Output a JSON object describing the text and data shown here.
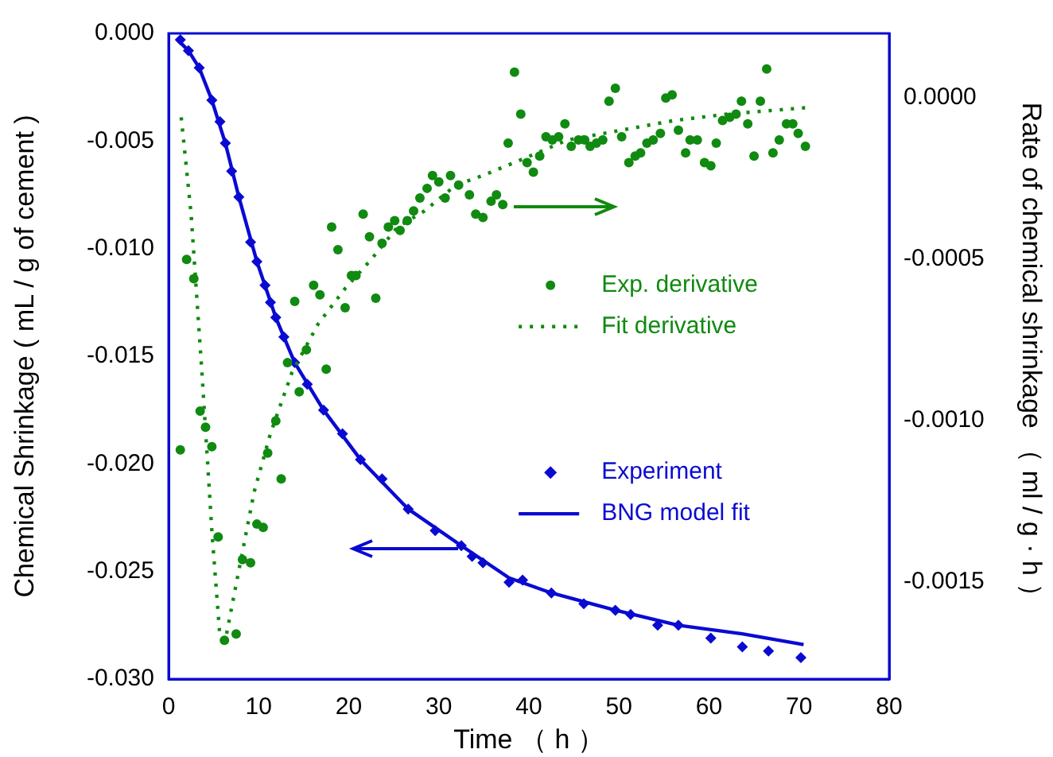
{
  "chart_data": {
    "type": "line",
    "xlabel": "Time （ h ）",
    "ylabel": "Chemical Shrinkage ( mL / g of cement )",
    "y2label": "Rate of chemical shrinkage （ ml / g · h ）",
    "xlim": [
      0,
      80
    ],
    "xticks": [
      0,
      10,
      20,
      30,
      40,
      50,
      60,
      70,
      80
    ],
    "ylim": [
      -0.03,
      0
    ],
    "yticks": [
      {
        "value": -0.03,
        "label": "-0.030"
      },
      {
        "value": -0.025,
        "label": "-0.025"
      },
      {
        "value": -0.02,
        "label": "-0.020"
      },
      {
        "value": -0.015,
        "label": "-0.015"
      },
      {
        "value": -0.01,
        "label": "-0.010"
      },
      {
        "value": -0.005,
        "label": "-0.005"
      },
      {
        "value": 0,
        "label": "0.000"
      }
    ],
    "y2lim": [
      -0.0018,
      0.0002
    ],
    "y2ticks": [
      {
        "value": -0.0015,
        "label": "-0.0015"
      },
      {
        "value": -0.001,
        "label": "-0.0010"
      },
      {
        "value": -0.0005,
        "label": "-0.0005"
      },
      {
        "value": 0,
        "label": "0.0000"
      }
    ],
    "grid": false,
    "legend": "right",
    "series": [
      {
        "name": "Exp. derivative",
        "type": "scatter",
        "axis": "y2",
        "marker": "circle",
        "color": "#108a10",
        "x": [
          1.3,
          2.0,
          2.8,
          3.5,
          4.1,
          4.8,
          5.5,
          6.2,
          7.5,
          8.2,
          9.1,
          9.8,
          10.5,
          11.0,
          11.9,
          12.5,
          13.2,
          14.0,
          14.5,
          15.3,
          16.1,
          16.8,
          17.5,
          18.1,
          18.8,
          19.6,
          20.3,
          20.8,
          21.6,
          22.3,
          23.0,
          23.7,
          24.4,
          25.1,
          25.7,
          26.5,
          27.2,
          27.9,
          28.7,
          29.3,
          30.0,
          30.7,
          31.3,
          32.2,
          33.4,
          34.1,
          34.9,
          35.8,
          36.4,
          37.1,
          37.7,
          38.4,
          39.1,
          39.8,
          40.5,
          41.2,
          41.9,
          42.6,
          43.3,
          44.0,
          44.7,
          45.5,
          46.2,
          46.8,
          47.5,
          48.2,
          48.9,
          49.6,
          50.3,
          51.1,
          51.8,
          52.4,
          53.1,
          53.8,
          54.6,
          55.2,
          55.9,
          56.6,
          57.4,
          57.9,
          58.7,
          59.5,
          60.2,
          60.8,
          61.5,
          62.3,
          63.0,
          63.6,
          64.3,
          65.0,
          65.7,
          66.4,
          67.1,
          67.8,
          68.6,
          69.3,
          69.9,
          70.7
        ],
        "values": [
          -0.00109,
          -0.0005,
          -0.00056,
          -0.00097,
          -0.00102,
          -0.00108,
          -0.00136,
          -0.00168,
          -0.00166,
          -0.00143,
          -0.00144,
          -0.00132,
          -0.00133,
          -0.0011,
          -0.001,
          -0.00118,
          -0.00082,
          -0.00063,
          -0.00091,
          -0.00078,
          -0.00058,
          -0.00061,
          -0.00084,
          -0.0004,
          -0.00047,
          -0.00065,
          -0.00055,
          -0.00055,
          -0.00036,
          -0.00043,
          -0.00062,
          -0.00045,
          -0.0004,
          -0.00038,
          -0.00041,
          -0.00038,
          -0.00035,
          -0.00031,
          -0.00028,
          -0.00024,
          -0.00026,
          -0.00031,
          -0.00024,
          -0.00027,
          -0.0003,
          -0.00036,
          -0.00037,
          -0.00032,
          -0.0003,
          -0.00033,
          -0.00014,
          8e-05,
          -5e-05,
          -0.0002,
          -0.00023,
          -0.00018,
          -0.00012,
          -0.00013,
          -0.00012,
          -8e-05,
          -0.00015,
          -0.00013,
          -0.00013,
          -0.00015,
          -0.00014,
          -0.00013,
          -1e-05,
          3e-05,
          -0.00012,
          -0.0002,
          -0.00018,
          -0.00017,
          -0.00014,
          -0.00013,
          -0.00011,
          0,
          1e-05,
          -0.0001,
          -0.00017,
          -0.00013,
          -0.00013,
          -0.0002,
          -0.00021,
          -0.00014,
          -7e-05,
          -6e-05,
          -5e-05,
          -1e-05,
          -8e-05,
          -0.00018,
          -1e-05,
          9e-05,
          -0.00017,
          -0.00013,
          -8e-05,
          -8e-05,
          -0.00011,
          -0.00015
        ]
      },
      {
        "name": "Fit derivative",
        "type": "line",
        "axis": "y2",
        "marker": "none",
        "line_style": "dotted",
        "color": "#108a10",
        "x": [
          1.4,
          2.5,
          3.7,
          4.8,
          5.7,
          6.3,
          7.2,
          8.1,
          9.5,
          11.3,
          13.7,
          16.6,
          19.6,
          22.5,
          25.4,
          28.4,
          31.9,
          34.9,
          38.4,
          44.3,
          50.2,
          56.1,
          62.0,
          70.8
        ],
        "values": [
          -6e-05,
          -0.00036,
          -0.00085,
          -0.00134,
          -0.00167,
          -0.00168,
          -0.00155,
          -0.00142,
          -0.00122,
          -0.00104,
          -0.00085,
          -0.0007,
          -0.00059,
          -0.0005,
          -0.0004,
          -0.00035,
          -0.00027,
          -0.00024,
          -0.0002,
          -0.00013,
          -0.0001,
          -7e-05,
          -5e-05,
          -3e-05
        ]
      },
      {
        "name": "Experiment",
        "type": "scatter",
        "axis": "y",
        "marker": "diamond",
        "color": "#0a0ad2",
        "x": [
          1.3,
          2.2,
          3.4,
          4.8,
          5.7,
          6.3,
          7.0,
          7.8,
          9.1,
          9.8,
          10.7,
          11.3,
          11.9,
          12.8,
          14.0,
          15.4,
          17.2,
          19.3,
          21.3,
          23.7,
          26.6,
          29.6,
          32.5,
          33.7,
          34.9,
          37.8,
          39.3,
          42.5,
          46.1,
          49.6,
          51.3,
          54.3,
          56.6,
          60.2,
          63.7,
          66.6,
          70.2
        ],
        "values": [
          -0.0003,
          -0.0008,
          -0.0016,
          -0.0031,
          -0.0041,
          -0.0051,
          -0.0064,
          -0.0076,
          -0.0097,
          -0.0106,
          -0.0117,
          -0.0125,
          -0.0132,
          -0.0141,
          -0.0153,
          -0.0163,
          -0.0175,
          -0.0186,
          -0.0198,
          -0.0207,
          -0.0221,
          -0.0231,
          -0.0238,
          -0.0243,
          -0.0246,
          -0.0255,
          -0.0254,
          -0.026,
          -0.0265,
          -0.0268,
          -0.027,
          -0.0275,
          -0.0275,
          -0.0281,
          -0.0285,
          -0.0287,
          -0.029
        ]
      },
      {
        "name": "BNG model fit",
        "type": "line",
        "axis": "y",
        "marker": "none",
        "line_style": "solid",
        "color": "#0a0ad2",
        "x": [
          1.0,
          2.2,
          3.4,
          4.8,
          6.3,
          7.8,
          9.8,
          11.9,
          14.0,
          17.2,
          21.3,
          26.6,
          32.5,
          37.8,
          42.5,
          49.6,
          56.6,
          63.7,
          70.5
        ],
        "values": [
          -0.0003,
          -0.0008,
          -0.0016,
          -0.0031,
          -0.0051,
          -0.0076,
          -0.0106,
          -0.0132,
          -0.0153,
          -0.0175,
          -0.0198,
          -0.0221,
          -0.0238,
          -0.0253,
          -0.026,
          -0.0268,
          -0.0275,
          -0.0279,
          -0.0284
        ]
      }
    ]
  }
}
